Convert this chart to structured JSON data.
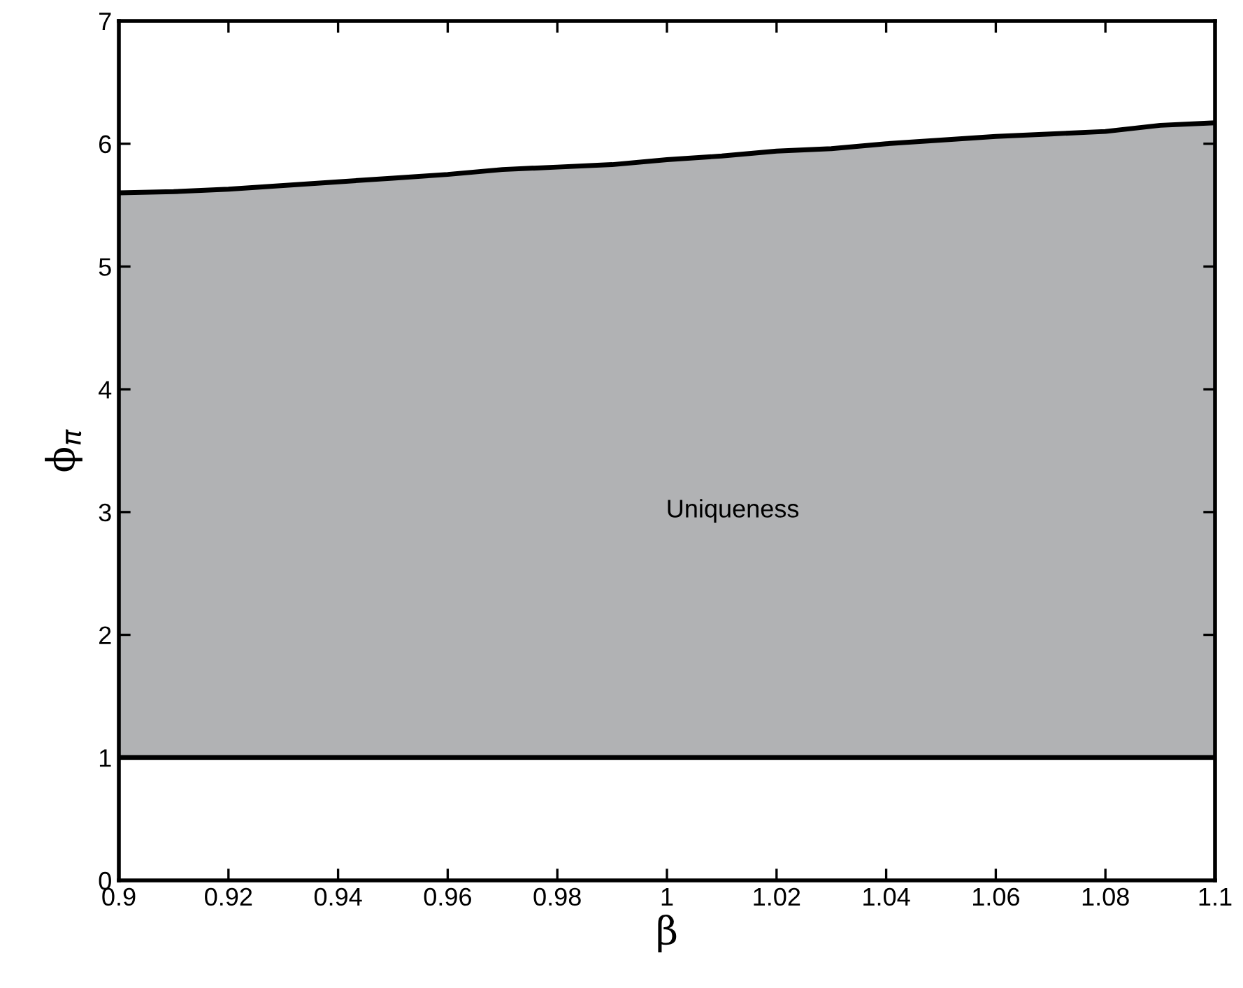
{
  "chart_data": {
    "type": "area",
    "stacked": true,
    "xlabel": "β",
    "ylabel": "ϕ$_{π}$",
    "x": [
      0.9,
      0.91,
      0.92,
      0.93,
      0.94,
      0.95,
      0.96,
      0.97,
      0.98,
      0.99,
      1.0,
      1.01,
      1.02,
      1.03,
      1.04,
      1.05,
      1.06,
      1.07,
      1.08,
      1.09,
      1.1
    ],
    "series": [
      {
        "color": "#ffffff",
        "values": [
          1,
          1,
          1,
          1,
          1,
          1,
          1,
          1,
          1,
          1,
          1,
          1,
          1,
          1,
          1,
          1,
          1,
          1,
          1,
          1,
          1
        ]
      },
      {
        "color": "#b1b2b4",
        "values": [
          4.6,
          4.61,
          4.63,
          4.66,
          4.69,
          4.72,
          4.75,
          4.79,
          4.81,
          4.83,
          4.87,
          4.9,
          4.94,
          4.96,
          5.0,
          5.03,
          5.06,
          5.08,
          5.1,
          5.15,
          5.17
        ]
      }
    ],
    "annotations": [
      "Uniqueness"
    ],
    "xlim": [
      0.9,
      1.1
    ],
    "ylim": [
      0,
      7
    ],
    "xticks": [
      0.9,
      0.92,
      0.94,
      0.96,
      0.98,
      1,
      1.02,
      1.04,
      1.06,
      1.08,
      1.1
    ],
    "yticks": [
      0,
      1,
      2,
      3,
      4,
      5,
      6,
      7
    ],
    "grid": false,
    "legend": false
  }
}
